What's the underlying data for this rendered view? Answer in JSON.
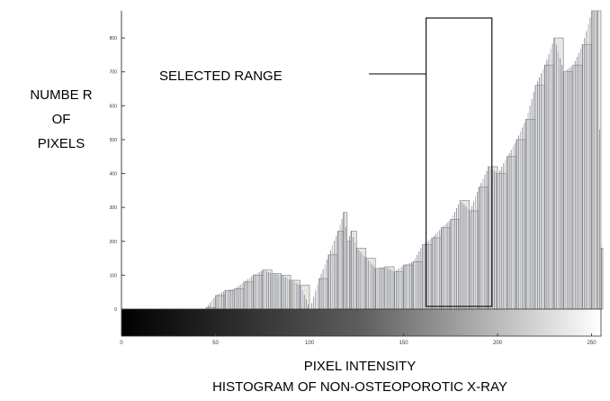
{
  "chart_data": {
    "type": "bar",
    "title": "HISTOGRAM OF NON-OSTEOPOROTIC X-RAY",
    "xlabel": "PIXEL INTENSITY",
    "ylabel_lines": [
      "NUMBE R",
      "OF",
      "PIXELS"
    ],
    "xlim": [
      0,
      255
    ],
    "ylim": [
      0,
      880
    ],
    "x_ticks": [
      0,
      50,
      100,
      150,
      200,
      250
    ],
    "y_ticks": [
      0,
      100,
      200,
      300,
      400,
      500,
      600,
      700,
      800
    ],
    "selected_range": {
      "label": "SELECTED RANGE",
      "x_start": 162,
      "x_end": 197
    },
    "bins": [
      45,
      50,
      55,
      60,
      65,
      70,
      75,
      80,
      85,
      90,
      95,
      100,
      105,
      110,
      115,
      118,
      120,
      122,
      125,
      130,
      135,
      140,
      145,
      150,
      155,
      160,
      165,
      170,
      175,
      180,
      185,
      190,
      195,
      200,
      205,
      210,
      215,
      220,
      225,
      230,
      235,
      240,
      245,
      250,
      253,
      255
    ],
    "values": [
      5,
      40,
      55,
      60,
      80,
      100,
      115,
      105,
      100,
      85,
      70,
      0,
      90,
      160,
      230,
      285,
      200,
      230,
      180,
      150,
      120,
      125,
      110,
      130,
      140,
      190,
      210,
      240,
      265,
      320,
      290,
      360,
      420,
      400,
      450,
      500,
      560,
      660,
      720,
      800,
      700,
      720,
      780,
      880,
      880,
      180
    ],
    "colors": {
      "bar_fill": "#e6e6e6",
      "bar_stroke": "#7a7a7a",
      "accent_stroke": "#9aa8c8",
      "axis": "#444444"
    }
  }
}
